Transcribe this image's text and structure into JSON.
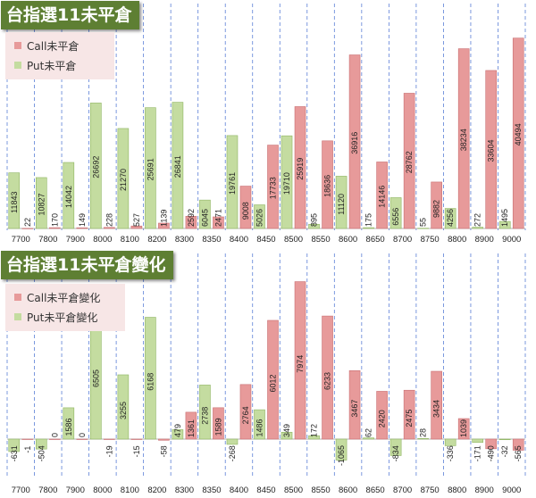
{
  "colors": {
    "call": "#e79a9a",
    "call_edge": "#c96f72",
    "put": "#c4dca0",
    "put_edge": "#8fb562",
    "grid": "#5b7fd6",
    "title_bg": "#5e7f33",
    "legend_bg": "#f7e6e6"
  },
  "chart_data": [
    {
      "type": "bar",
      "title": "台指選11未平倉",
      "categories": [
        "7700",
        "7800",
        "7900",
        "8000",
        "8100",
        "8200",
        "8300",
        "8350",
        "8400",
        "8450",
        "8500",
        "8550",
        "8600",
        "8650",
        "8700",
        "8750",
        "8800",
        "8900",
        "9000"
      ],
      "series": [
        {
          "name": "Call未平倉",
          "values": [
            22,
            170,
            149,
            228,
            527,
            1139,
            2592,
            2471,
            9008,
            17733,
            25919,
            18636,
            36916,
            14146,
            28762,
            9882,
            38234,
            33604,
            40494
          ]
        },
        {
          "name": "Put未平倉",
          "values": [
            11843,
            10827,
            14042,
            26692,
            21270,
            25691,
            26841,
            6045,
            19761,
            5026,
            19710,
            895,
            11120,
            175,
            6556,
            55,
            4256,
            272,
            1495
          ]
        }
      ],
      "legend": "top-left",
      "grid": "vertical-dashed"
    },
    {
      "type": "bar",
      "title": "台指選11未平倉變化",
      "categories": [
        "7700",
        "7800",
        "7900",
        "8000",
        "8100",
        "8200",
        "8300",
        "8350",
        "8400",
        "8450",
        "8500",
        "8550",
        "8600",
        "8650",
        "8700",
        "8750",
        "8800",
        "8900",
        "9000"
      ],
      "series": [
        {
          "name": "Call未平倉變化",
          "values": [
            -1,
            0,
            0,
            -19,
            -15,
            -58,
            1361,
            1589,
            2764,
            6012,
            7974,
            6233,
            3467,
            2420,
            2475,
            3434,
            1039,
            -490,
            -565
          ]
        },
        {
          "name": "Put未平倉變化",
          "values": [
            -631,
            -504,
            1586,
            6505,
            3255,
            6168,
            479,
            2738,
            -268,
            1486,
            349,
            172,
            -1065,
            62,
            -834,
            28,
            -336,
            -171,
            -32
          ]
        }
      ],
      "legend": "top-left",
      "grid": "vertical-dashed"
    }
  ]
}
